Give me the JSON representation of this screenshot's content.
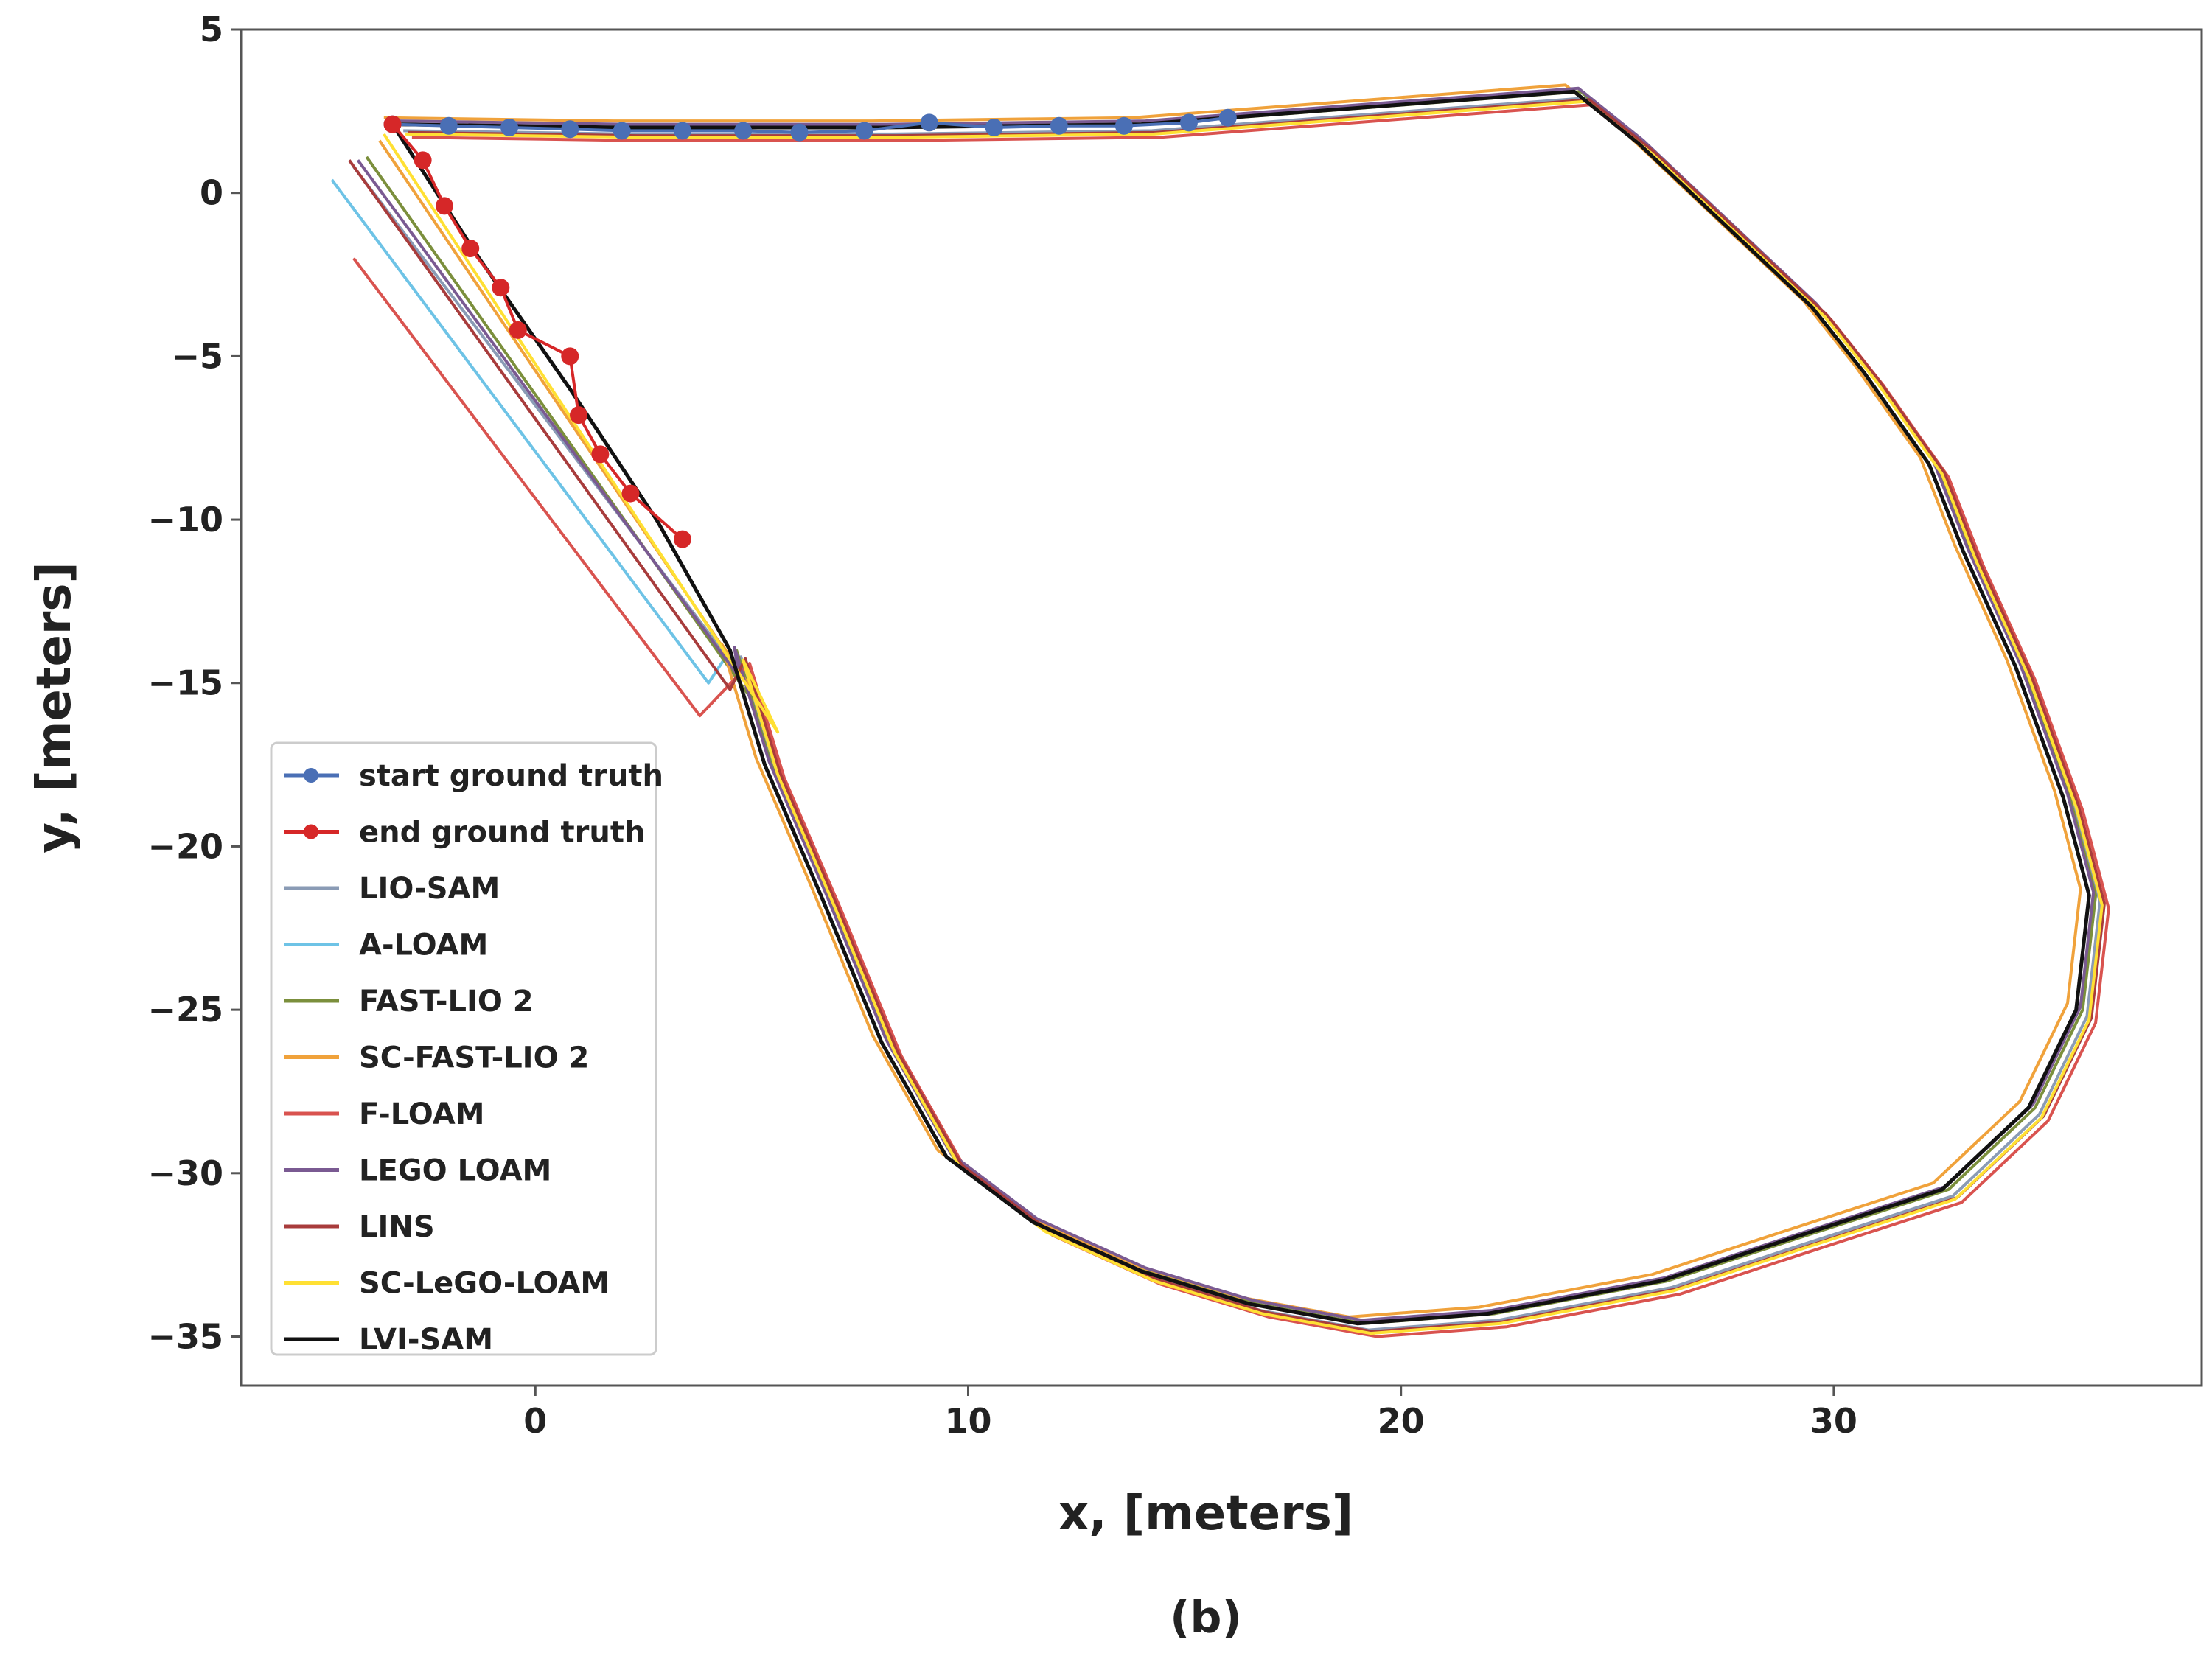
{
  "chart_data": {
    "type": "line",
    "title": "",
    "caption": "(b)",
    "xlabel": "x, [meters]",
    "ylabel": "y, [meters]",
    "xlim": [
      -6.8,
      38.5
    ],
    "ylim": [
      -36.5,
      5
    ],
    "xticks": [
      0,
      10,
      20,
      30
    ],
    "xtick_labels": [
      "0",
      "10",
      "20",
      "30"
    ],
    "yticks": [
      5,
      0,
      -5,
      -10,
      -15,
      -20,
      -25,
      -30,
      -35
    ],
    "ytick_labels": [
      "5",
      "0",
      "−5",
      "−10",
      "−15",
      "−20",
      "−25",
      "−30",
      "−35"
    ],
    "grid": false,
    "legend_position": "lower-left",
    "base_path": [
      [
        -3.3,
        2.1
      ],
      [
        2,
        2.0
      ],
      [
        8,
        2.0
      ],
      [
        14,
        2.1
      ],
      [
        20,
        2.7
      ],
      [
        24,
        3.1
      ],
      [
        25.5,
        1.5
      ],
      [
        27.5,
        -1.0
      ],
      [
        29.5,
        -3.5
      ],
      [
        30.7,
        -5.5
      ],
      [
        31.5,
        -7.0
      ],
      [
        32.2,
        -8.3
      ],
      [
        33.0,
        -11.0
      ],
      [
        34.2,
        -14.5
      ],
      [
        35.3,
        -18.5
      ],
      [
        35.9,
        -21.5
      ],
      [
        35.6,
        -25.0
      ],
      [
        34.5,
        -28.0
      ],
      [
        32.5,
        -30.5
      ],
      [
        29.0,
        -32.0
      ],
      [
        26.0,
        -33.3
      ],
      [
        22.0,
        -34.3
      ],
      [
        19.0,
        -34.6
      ],
      [
        16.5,
        -34.0
      ],
      [
        14.0,
        -33.0
      ],
      [
        11.5,
        -31.5
      ],
      [
        9.5,
        -29.5
      ],
      [
        8.0,
        -26.0
      ],
      [
        6.6,
        -21.5
      ],
      [
        5.3,
        -17.5
      ],
      [
        4.5,
        -14.0
      ],
      [
        2.8,
        -10.0
      ],
      [
        0.8,
        -6.0
      ],
      [
        -1.3,
        -2.0
      ],
      [
        -3.3,
        2.1
      ]
    ],
    "series": [
      {
        "name": "start ground truth",
        "color": "#4a6fb5",
        "markers": true,
        "points": [
          [
            -3.3,
            2.1
          ],
          [
            -2.0,
            2.05
          ],
          [
            -0.6,
            2.0
          ],
          [
            0.8,
            1.95
          ],
          [
            2.0,
            1.9
          ],
          [
            3.4,
            1.9
          ],
          [
            4.8,
            1.9
          ],
          [
            6.1,
            1.85
          ],
          [
            7.6,
            1.9
          ],
          [
            9.1,
            2.15
          ],
          [
            10.6,
            2.0
          ],
          [
            12.1,
            2.05
          ],
          [
            13.6,
            2.05
          ],
          [
            15.1,
            2.15
          ],
          [
            16.0,
            2.3
          ]
        ]
      },
      {
        "name": "end ground truth",
        "color": "#d62728",
        "markers": true,
        "points": [
          [
            -3.3,
            2.1
          ],
          [
            -2.6,
            1.0
          ],
          [
            -2.1,
            -0.4
          ],
          [
            -1.5,
            -1.7
          ],
          [
            -0.8,
            -2.9
          ],
          [
            -0.4,
            -4.2
          ],
          [
            0.8,
            -5.0
          ],
          [
            1.0,
            -6.8
          ],
          [
            1.5,
            -8.0
          ],
          [
            2.2,
            -9.2
          ],
          [
            3.4,
            -10.6
          ]
        ]
      },
      {
        "name": "LIO-SAM",
        "color": "#8a9bb5",
        "markers": false,
        "offset": [
          0.25,
          -0.2
        ],
        "tail": [
          [
            -4.2,
            0.8
          ],
          [
            4.6,
            -14.5
          ]
        ]
      },
      {
        "name": "A-LOAM",
        "color": "#6ec3e6",
        "markers": false,
        "offset": [
          0,
          0
        ],
        "tail": [
          [
            -4.7,
            0.4
          ],
          [
            4.0,
            -15.0
          ]
        ]
      },
      {
        "name": "FAST-LIO 2",
        "color": "#7b8f3c",
        "markers": false,
        "offset": [
          0.15,
          0
        ],
        "tail": [
          [
            -3.9,
            1.1
          ],
          [
            5.0,
            -15.5
          ]
        ]
      },
      {
        "name": "SC-FAST-LIO 2",
        "color": "#f0a23b",
        "markers": false,
        "offset": [
          -0.2,
          0.2
        ],
        "tail": [
          [
            -3.6,
            1.6
          ],
          [
            5.4,
            -16.0
          ]
        ]
      },
      {
        "name": "F-LOAM",
        "color": "#d9534f",
        "markers": false,
        "offset": [
          0.45,
          -0.4
        ],
        "tail": [
          [
            -4.2,
            -2.0
          ],
          [
            3.8,
            -16.0
          ]
        ]
      },
      {
        "name": "LEGO LOAM",
        "color": "#7a5a92",
        "markers": false,
        "offset": [
          0.1,
          0.1
        ],
        "tail": [
          [
            -4.1,
            1.0
          ],
          [
            4.7,
            -14.8
          ]
        ]
      },
      {
        "name": "LINS",
        "color": "#a83c3c",
        "markers": false,
        "offset": [
          0.35,
          -0.25
        ],
        "tail": [
          [
            -4.3,
            1.0
          ],
          [
            4.5,
            -15.2
          ]
        ]
      },
      {
        "name": "SC-LeGO-LOAM",
        "color": "#ffe033",
        "markers": false,
        "offset": [
          0.3,
          -0.3
        ],
        "tail": [
          [
            -3.5,
            1.8
          ],
          [
            5.6,
            -16.5
          ]
        ]
      },
      {
        "name": "LVI-SAM",
        "color": "#111111",
        "markers": false,
        "offset": [
          0,
          0
        ],
        "tail": null
      }
    ]
  }
}
